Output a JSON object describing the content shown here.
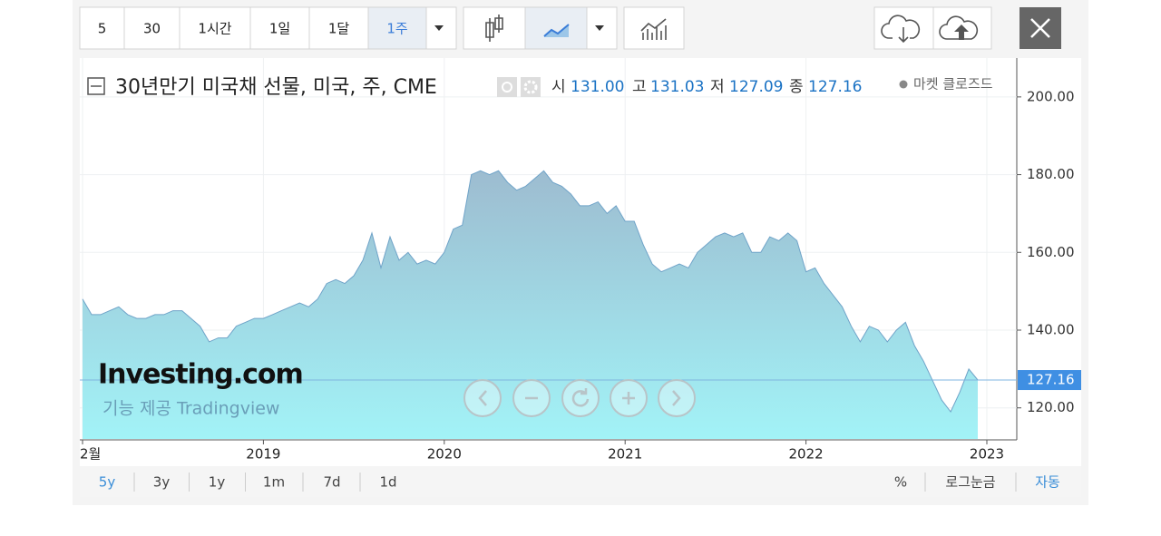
{
  "toolbar": {
    "intervals": [
      "5",
      "30",
      "1시간",
      "1일",
      "1달",
      "1주"
    ]
  },
  "chart_data": {
    "type": "area",
    "title": "30년만기 미국채 선물, 미국, 주, CME",
    "ohlc": [
      {
        "label": "시",
        "value": "131.00"
      },
      {
        "label": "고",
        "value": "131.03"
      },
      {
        "label": "저",
        "value": "127.09"
      },
      {
        "label": "종",
        "value": "127.16"
      }
    ],
    "status": "마켓 클로즈드",
    "watermark": "Investing.com",
    "credit": "기능 제공 Tradingview",
    "categories": [
      "2월",
      null,
      null,
      null,
      null,
      null,
      null,
      null,
      null,
      null,
      null,
      null,
      null,
      null,
      null,
      null,
      null,
      null,
      null,
      null,
      "2019",
      null,
      null,
      null,
      null,
      null,
      null,
      null,
      null,
      null,
      null,
      null,
      null,
      null,
      null,
      null,
      null,
      null,
      null,
      null,
      "2020",
      null,
      null,
      null,
      null,
      null,
      null,
      null,
      null,
      null,
      null,
      null,
      null,
      null,
      null,
      null,
      null,
      null,
      null,
      null,
      "2021",
      null,
      null,
      null,
      null,
      null,
      null,
      null,
      null,
      null,
      null,
      null,
      null,
      null,
      null,
      null,
      null,
      null,
      null,
      null,
      "2022",
      null,
      null,
      null,
      null,
      null,
      null,
      null,
      null,
      null,
      null,
      null,
      null,
      null,
      null,
      null,
      null,
      null,
      null,
      null,
      "2023"
    ],
    "values": [
      148,
      144,
      144,
      145,
      146,
      144,
      143,
      143,
      144,
      144,
      145,
      145,
      143,
      141,
      137,
      138,
      138,
      141,
      142,
      143,
      143,
      144,
      145,
      146,
      147,
      146,
      148,
      152,
      153,
      152,
      154,
      158,
      165,
      156,
      164,
      158,
      160,
      157,
      158,
      157,
      160,
      166,
      167,
      180,
      181,
      180,
      181,
      178,
      176,
      177,
      179,
      181,
      178,
      177,
      175,
      172,
      172,
      173,
      170,
      172,
      168,
      168,
      162,
      157,
      155,
      156,
      157,
      156,
      160,
      162,
      164,
      165,
      164,
      165,
      160,
      160,
      164,
      163,
      165,
      163,
      155,
      156,
      152,
      149,
      146,
      141,
      137,
      141,
      140,
      137,
      140,
      142,
      136,
      132,
      127,
      122,
      119,
      124,
      130,
      127.16,
      null
    ],
    "color": "#6fa3c8",
    "ylim": [
      112,
      210
    ],
    "yticks": [
      {
        "value": 120,
        "label": "120.00"
      },
      {
        "value": 140,
        "label": "140.00"
      },
      {
        "value": 160,
        "label": "160.00"
      },
      {
        "value": 180,
        "label": "180.00"
      },
      {
        "value": 200,
        "label": "200.00"
      }
    ],
    "marker": {
      "value": 127.16,
      "label": "127.16"
    },
    "grid": true
  },
  "range_buttons": [
    "5y",
    "3y",
    "1y",
    "1m",
    "7d",
    "1d"
  ],
  "scale_options": [
    "%",
    "로그눈금",
    "자동"
  ]
}
